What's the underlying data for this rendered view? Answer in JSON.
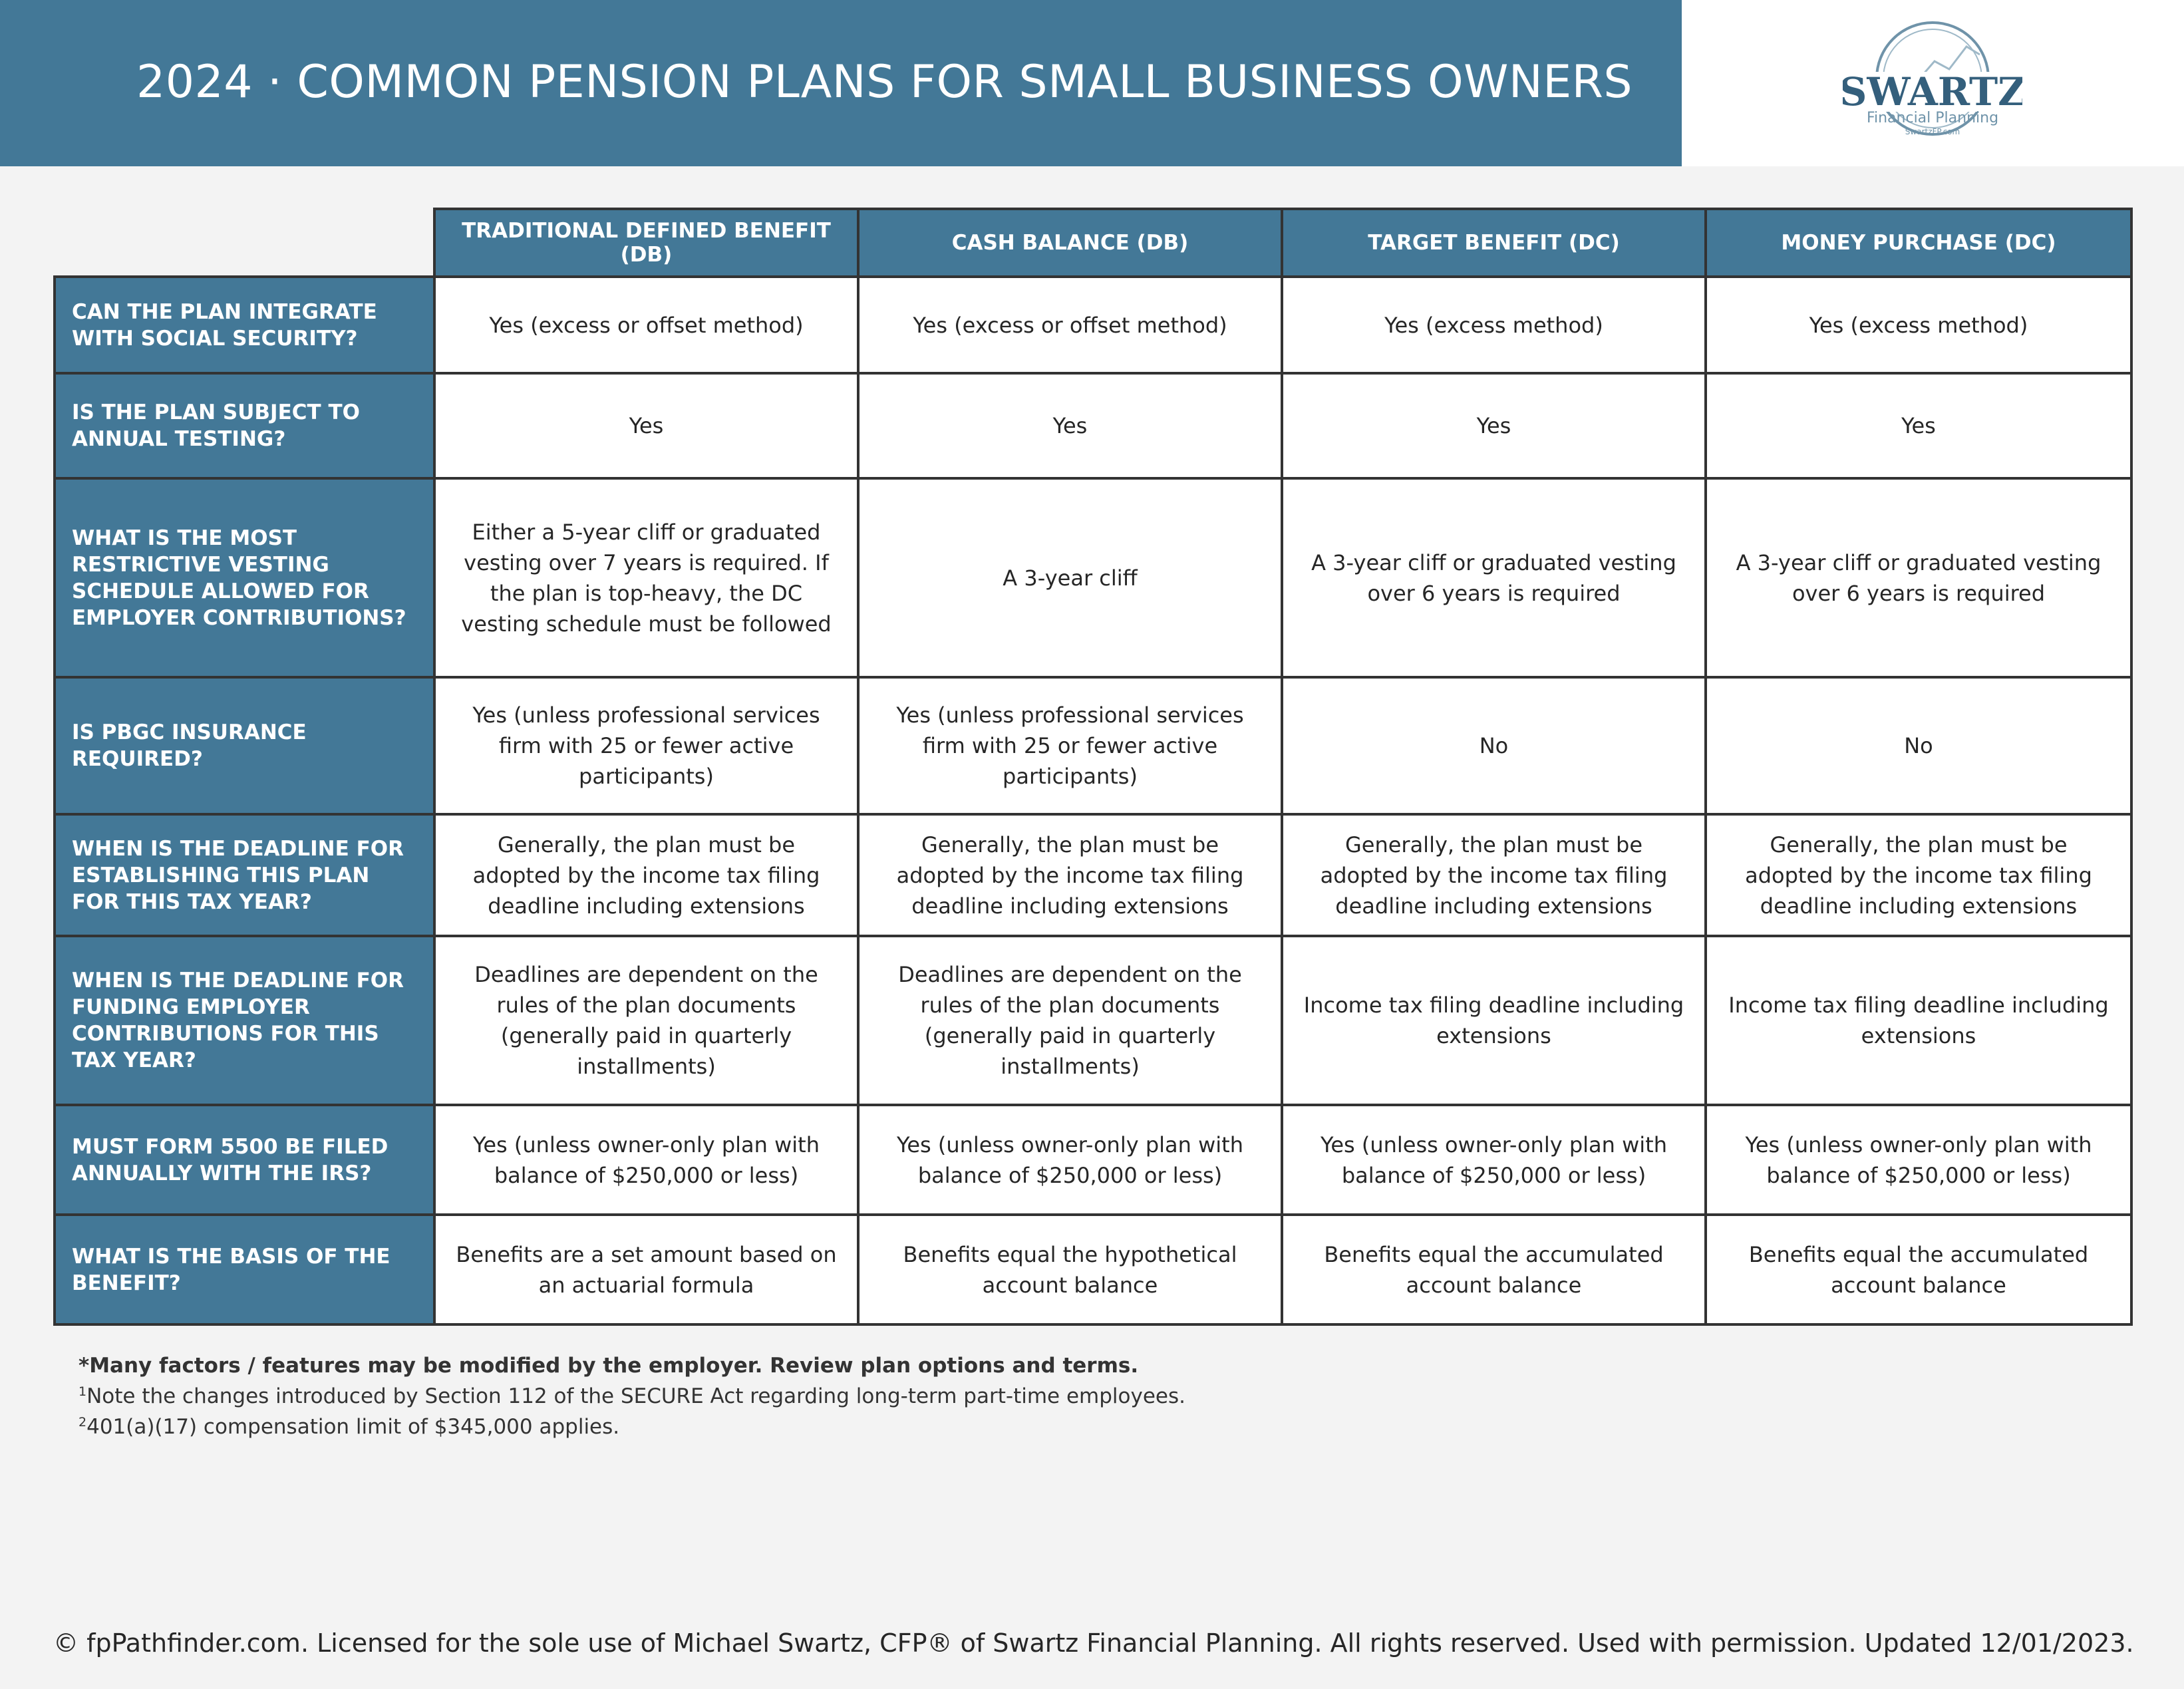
{
  "header": {
    "title": "2024 · COMMON PENSION PLANS FOR SMALL BUSINESS OWNERS",
    "band_color": "#437897"
  },
  "logo": {
    "name": "SWARTZ",
    "subtitle": "Financial Planning",
    "url": "SwartzFP.com"
  },
  "table": {
    "columns": [
      "TRADITIONAL DEFINED BENEFIT (DB)",
      "CASH BALANCE (DB)",
      "TARGET BENEFIT (DC)",
      "MONEY PURCHASE (DC)"
    ],
    "rows": [
      {
        "label": "CAN THE PLAN INTEGRATE WITH SOCIAL SECURITY?",
        "cells": [
          "Yes (excess or offset method)",
          "Yes (excess or offset method)",
          "Yes (excess method)",
          "Yes (excess method)"
        ]
      },
      {
        "label": "IS THE PLAN SUBJECT TO ANNUAL TESTING?",
        "cells": [
          "Yes",
          "Yes",
          "Yes",
          "Yes"
        ]
      },
      {
        "label": "WHAT IS THE MOST RESTRICTIVE VESTING SCHEDULE ALLOWED FOR EMPLOYER CONTRIBUTIONS?",
        "cells": [
          "Either a 5-year cliff or graduated vesting over 7 years is required. If the plan is top-heavy, the DC vesting schedule must be followed",
          "A 3-year cliff",
          "A 3-year cliff or graduated vesting over 6 years is required",
          "A 3-year cliff or graduated vesting over 6 years is required"
        ]
      },
      {
        "label": "IS PBGC INSURANCE REQUIRED?",
        "cells": [
          "Yes (unless professional services firm with 25 or fewer active participants)",
          "Yes (unless professional services firm with 25 or fewer active participants)",
          "No",
          "No"
        ]
      },
      {
        "label": "WHEN IS THE DEADLINE FOR ESTABLISHING THIS PLAN FOR THIS TAX YEAR?",
        "cells": [
          "Generally, the plan must be adopted by the income tax filing deadline including extensions",
          "Generally, the plan must be adopted by the income tax filing deadline including extensions",
          "Generally, the plan must be adopted by the income tax filing deadline including extensions",
          "Generally, the plan must be adopted by the income tax filing deadline including extensions"
        ]
      },
      {
        "label": "WHEN IS THE DEADLINE FOR FUNDING EMPLOYER CONTRIBUTIONS FOR THIS TAX YEAR?",
        "cells": [
          "Deadlines are dependent on the rules of the plan documents (generally paid in quarterly installments)",
          "Deadlines are dependent on the rules of the plan documents (generally paid in quarterly installments)",
          "Income tax filing deadline including extensions",
          "Income tax filing deadline including extensions"
        ]
      },
      {
        "label": "MUST FORM 5500 BE FILED ANNUALLY WITH THE IRS?",
        "cells": [
          "Yes (unless owner-only plan with balance of $250,000 or less)",
          "Yes (unless owner-only plan with balance of $250,000 or less)",
          "Yes (unless owner-only plan with balance of $250,000 or less)",
          "Yes (unless owner-only plan with balance of $250,000 or less)"
        ]
      },
      {
        "label": "WHAT IS THE BASIS OF THE BENEFIT?",
        "cells": [
          "Benefits are a set amount based on an actuarial formula",
          "Benefits equal the hypothetical account balance",
          "Benefits equal the accumulated account balance",
          "Benefits equal the accumulated account balance"
        ]
      }
    ]
  },
  "notes": {
    "bold_note": "*Many factors / features may be modified by the employer. Review plan options and terms.",
    "note1_marker": "1",
    "note1": "Note the changes introduced by Section 112 of the SECURE Act regarding long-term part-time employees.",
    "note2_marker": "2",
    "note2": "401(a)(17) compensation limit of $345,000 applies."
  },
  "footer": "© fpPathfinder.com. Licensed for the sole use of Michael Swartz, CFP® of Swartz Financial Planning. All rights reserved. Used with permission. Updated 12/01/2023."
}
